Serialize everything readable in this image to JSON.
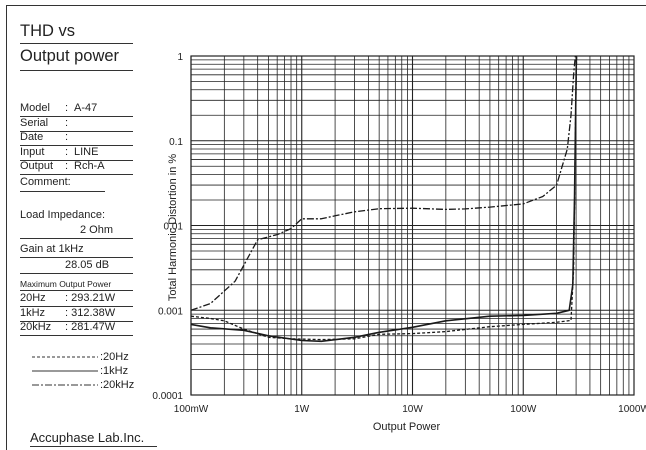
{
  "sheet": {
    "title_line1": "THD vs",
    "title_line2": "Output power",
    "fields": [
      {
        "label": "Model",
        "value": "A-47"
      },
      {
        "label": "Serial",
        "value": ""
      },
      {
        "label": "Date",
        "value": ""
      },
      {
        "label": "Input",
        "value": "LINE"
      },
      {
        "label": "Output",
        "value": "Rch-A"
      }
    ],
    "comment_label": "Comment:",
    "load_label": "Load Impedance:",
    "load_value": "2 Ohm",
    "gain_label": "Gain at 1kHz",
    "gain_value": "28.05 dB",
    "max_power_label": "Maximum Output Power",
    "max_power": [
      {
        "freq": "20Hz",
        "value": ": 293.21W"
      },
      {
        "freq": "1kHz",
        "value": ": 312.38W"
      },
      {
        "freq": "20kHz",
        "value": ": 281.47W"
      }
    ],
    "legend": [
      {
        "label": ":20Hz",
        "dash": "dashed"
      },
      {
        "label": ":1kHz",
        "dash": "solid"
      },
      {
        "label": ":20kHz",
        "dash": "dashdot"
      }
    ],
    "footer": "Accuphase Lab.Inc."
  },
  "chart_data": {
    "type": "line",
    "xlabel": "Output Power",
    "ylabel": "Total Harmonic Distortion in %",
    "x_scale": "log",
    "y_scale": "log",
    "xlim": [
      0.1,
      1000
    ],
    "ylim": [
      0.0001,
      1
    ],
    "x_ticks": [
      {
        "value": 0.1,
        "label": "100mW"
      },
      {
        "value": 1,
        "label": "1W"
      },
      {
        "value": 10,
        "label": "10W"
      },
      {
        "value": 100,
        "label": "100W"
      },
      {
        "value": 1000,
        "label": "1000W"
      }
    ],
    "y_ticks": [
      {
        "value": 1,
        "label": "1"
      },
      {
        "value": 0.1,
        "label": "0.1"
      },
      {
        "value": 0.01,
        "label": "0.01"
      },
      {
        "value": 0.001,
        "label": "0.001"
      },
      {
        "value": 0.0001,
        "label": "0.0001"
      }
    ],
    "grid": true,
    "series": [
      {
        "name": "20Hz",
        "style": "dashed",
        "points": [
          [
            0.1,
            0.00085
          ],
          [
            0.15,
            0.0008
          ],
          [
            0.2,
            0.00075
          ],
          [
            0.3,
            0.0006
          ],
          [
            0.5,
            0.00048
          ],
          [
            0.8,
            0.00046
          ],
          [
            1.5,
            0.00045
          ],
          [
            3,
            0.00046
          ],
          [
            5,
            0.00052
          ],
          [
            10,
            0.00053
          ],
          [
            20,
            0.00056
          ],
          [
            50,
            0.00064
          ],
          [
            100,
            0.00068
          ],
          [
            200,
            0.00072
          ],
          [
            270,
            0.00076
          ],
          [
            285,
            0.003
          ],
          [
            292,
            0.03
          ],
          [
            298,
            0.3
          ],
          [
            303,
            1.0
          ]
        ]
      },
      {
        "name": "1kHz",
        "style": "solid",
        "points": [
          [
            0.1,
            0.00068
          ],
          [
            0.15,
            0.00062
          ],
          [
            0.3,
            0.00058
          ],
          [
            0.5,
            0.0005
          ],
          [
            1,
            0.00044
          ],
          [
            1.5,
            0.00043
          ],
          [
            3,
            0.00048
          ],
          [
            5,
            0.00055
          ],
          [
            10,
            0.00063
          ],
          [
            20,
            0.00075
          ],
          [
            50,
            0.00085
          ],
          [
            100,
            0.00087
          ],
          [
            200,
            0.00092
          ],
          [
            260,
            0.001
          ],
          [
            280,
            0.002
          ],
          [
            290,
            0.02
          ],
          [
            298,
            0.3
          ],
          [
            302,
            1.0
          ]
        ]
      },
      {
        "name": "20kHz",
        "style": "dashdot",
        "points": [
          [
            0.1,
            0.001
          ],
          [
            0.15,
            0.0012
          ],
          [
            0.25,
            0.0022
          ],
          [
            0.4,
            0.0068
          ],
          [
            0.6,
            0.0078
          ],
          [
            0.8,
            0.0092
          ],
          [
            1,
            0.012
          ],
          [
            1.5,
            0.012
          ],
          [
            2,
            0.013
          ],
          [
            3,
            0.0145
          ],
          [
            5,
            0.0158
          ],
          [
            10,
            0.016
          ],
          [
            20,
            0.0155
          ],
          [
            30,
            0.0157
          ],
          [
            50,
            0.0165
          ],
          [
            100,
            0.018
          ],
          [
            150,
            0.022
          ],
          [
            200,
            0.03
          ],
          [
            250,
            0.08
          ],
          [
            270,
            0.2
          ],
          [
            285,
            0.6
          ],
          [
            295,
            1.0
          ]
        ]
      }
    ]
  }
}
